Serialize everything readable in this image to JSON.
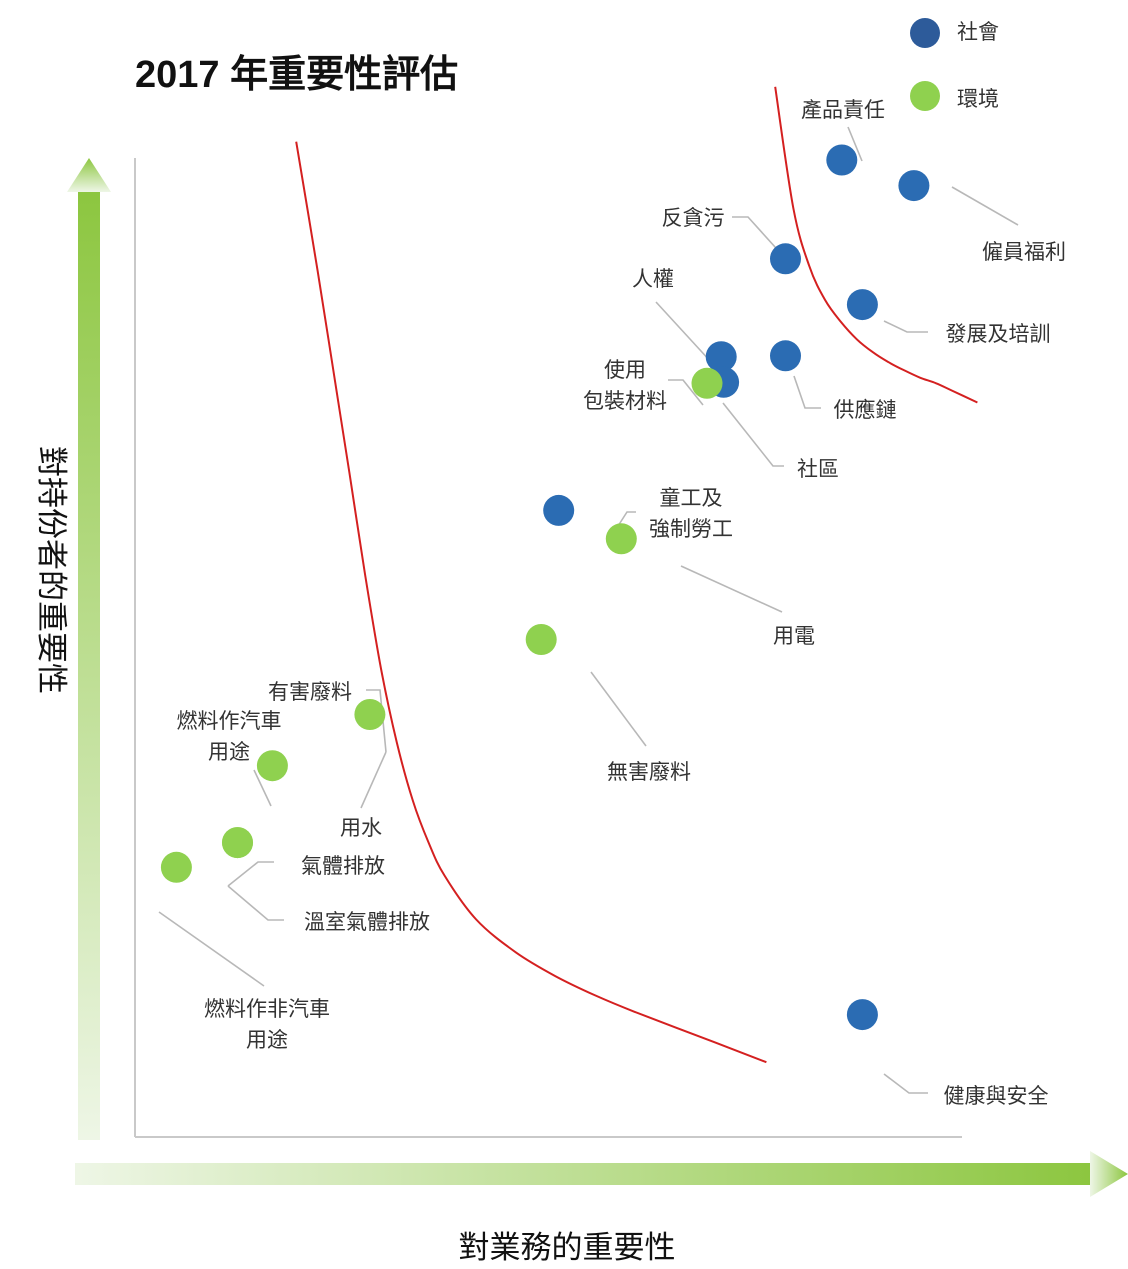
{
  "chart_data": {
    "type": "scatter",
    "title": "2017 年重要性評估",
    "xlabel": "對業務的重要性",
    "ylabel": "對持份者的重要性",
    "grid": false,
    "legend_position": "top-right",
    "colors": {
      "social": "#2b6cb3",
      "environment": "#8fd14f",
      "threshold": "#d42020",
      "arrow_start": "#eef6e6",
      "arrow_end": "#8cc63f",
      "axes": "#c9c9c9"
    },
    "legend": [
      {
        "key": "social",
        "label": "社會",
        "color": "#2d5b9a"
      },
      {
        "key": "environment",
        "label": "環境",
        "color": "#8fd14f"
      }
    ],
    "points": [
      {
        "label": "產品責任",
        "category": "social",
        "x": 86.1,
        "y": 100.0
      },
      {
        "label": "僱員福利",
        "category": "social",
        "x": 95.2,
        "y": 97.2
      },
      {
        "label": "反貪污",
        "category": "social",
        "x": 79.0,
        "y": 89.2
      },
      {
        "label": "發展及培訓",
        "category": "social",
        "x": 88.7,
        "y": 84.2
      },
      {
        "label": "人權",
        "category": "social",
        "x": 70.9,
        "y": 78.5
      },
      {
        "label": "供應鏈",
        "category": "social",
        "x": 79.0,
        "y": 78.6
      },
      {
        "label": "社區",
        "category": "social",
        "x": 71.2,
        "y": 75.7
      },
      {
        "label": "使用包裝材料",
        "category": "environment",
        "x": 69.1,
        "y": 75.6
      },
      {
        "label": "童工及強制勞工",
        "category": "social",
        "x": 50.4,
        "y": 61.7
      },
      {
        "label": "用電",
        "category": "environment",
        "x": 58.3,
        "y": 58.6
      },
      {
        "label": "無害廢料",
        "category": "environment",
        "x": 48.2,
        "y": 47.6
      },
      {
        "label": "用水",
        "category": "environment",
        "x": 26.6,
        "y": 39.4
      },
      {
        "label": "燃料作汽車用途",
        "category": "environment",
        "x": 14.3,
        "y": 33.8
      },
      {
        "label": "氣體排放",
        "category": "environment",
        "x": 9.9,
        "y": 25.4
      },
      {
        "label": "溫室氣體排放",
        "category": "environment",
        "x": 9.9,
        "y": 25.4
      },
      {
        "label": "燃料作非汽車用途",
        "category": "environment",
        "x": 2.2,
        "y": 22.7
      },
      {
        "label": "健康與安全",
        "category": "social",
        "x": 88.7,
        "y": 6.6
      }
    ],
    "thresholds": [
      {
        "points": [
          [
            17.3,
            102.0
          ],
          [
            20,
            87.9
          ],
          [
            22,
            76.9
          ],
          [
            24,
            65.9
          ],
          [
            26,
            54.6
          ],
          [
            28,
            44.4
          ],
          [
            30,
            36.3
          ],
          [
            32,
            30.0
          ],
          [
            34,
            25.4
          ],
          [
            36,
            21.8
          ],
          [
            40,
            17.0
          ],
          [
            45,
            13.4
          ],
          [
            50,
            10.8
          ],
          [
            55,
            8.7
          ],
          [
            60,
            6.9
          ],
          [
            70,
            3.6
          ],
          [
            76.6,
            1.4
          ]
        ]
      },
      {
        "points": [
          [
            77.7,
            108.0
          ],
          [
            80,
            94.7
          ],
          [
            82,
            88.4
          ],
          [
            84,
            84.7
          ],
          [
            86,
            82.3
          ],
          [
            88,
            80.4
          ],
          [
            90,
            79.0
          ],
          [
            92,
            77.9
          ],
          [
            94,
            77.0
          ],
          [
            96,
            76.2
          ],
          [
            98,
            75.6
          ],
          [
            100,
            74.8
          ],
          [
            103.2,
            73.5
          ]
        ]
      }
    ]
  }
}
